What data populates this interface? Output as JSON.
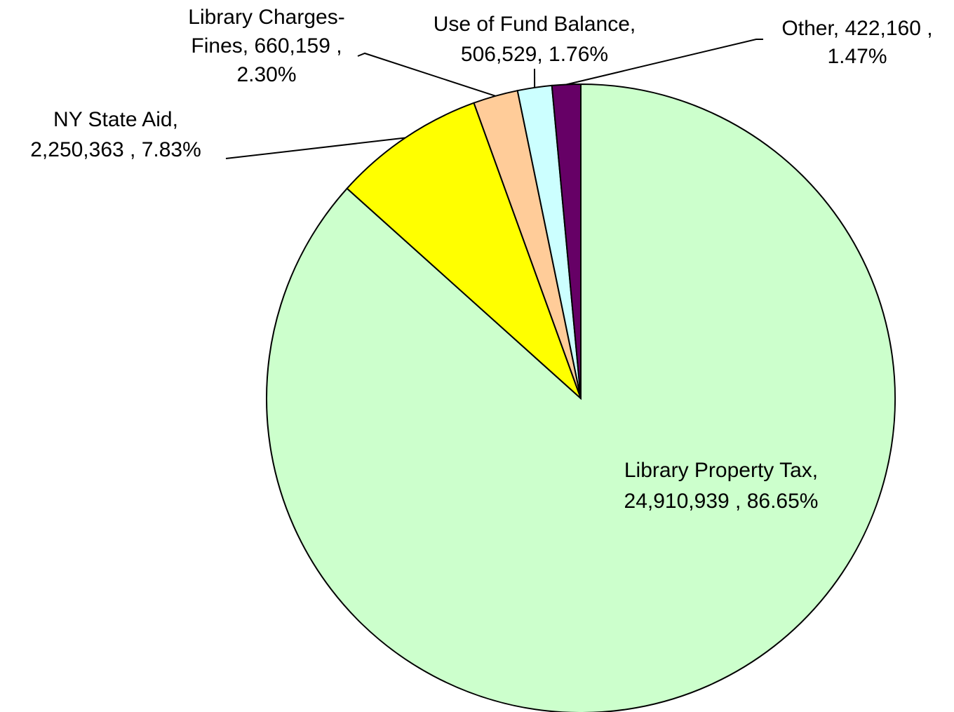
{
  "chart_data": {
    "type": "pie",
    "values": [
      24910939,
      2250363,
      660159,
      506529,
      422160
    ],
    "value_labels": [
      [
        "Library Property Tax,",
        "24,910,939 , 86.65%"
      ],
      [
        "NY State Aid,",
        "2,250,363 , 7.83%"
      ],
      [
        "Library Charges-",
        "Fines, 660,159 ,",
        "2.30%"
      ],
      [
        "Use of Fund Balance,",
        "506,529, 1.76%"
      ],
      [
        "Other, 422,160 ,",
        "1.47%"
      ]
    ],
    "colors": [
      "#ccffcc",
      "#ffff00",
      "#ffcc99",
      "#ccffff",
      "#660066"
    ]
  }
}
